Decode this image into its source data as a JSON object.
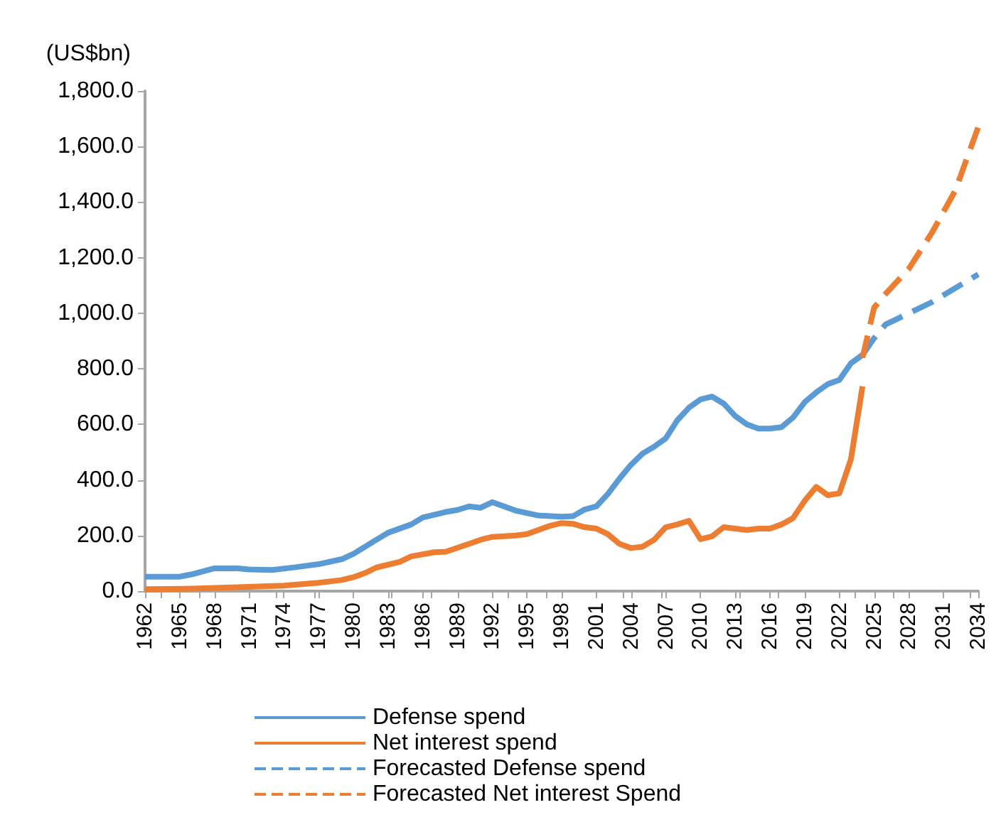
{
  "chart_data": {
    "type": "line",
    "ylabel": "(US$bn)",
    "xlim": [
      1962,
      2034
    ],
    "xticks": [
      1962,
      1965,
      1968,
      1971,
      1974,
      1977,
      1980,
      1983,
      1986,
      1989,
      1992,
      1995,
      1998,
      2001,
      2004,
      2007,
      2010,
      2013,
      2016,
      2019,
      2022,
      2025,
      2028,
      2031,
      2034
    ],
    "ylim": [
      0,
      1800
    ],
    "yticks": [
      {
        "value": 0,
        "label": "0.0"
      },
      {
        "value": 200,
        "label": "200.0"
      },
      {
        "value": 400,
        "label": "400.0"
      },
      {
        "value": 600,
        "label": "600.0"
      },
      {
        "value": 800,
        "label": "800.0"
      },
      {
        "value": 1000,
        "label": "1,000.0"
      },
      {
        "value": 1200,
        "label": "1,200.0"
      },
      {
        "value": 1400,
        "label": "1,400.0"
      },
      {
        "value": 1600,
        "label": "1,600.0"
      },
      {
        "value": 1800,
        "label": "1,800.0"
      }
    ],
    "grid": false,
    "legend": "bottom",
    "marker": "none",
    "series": [
      {
        "name": "Defense spend",
        "color": "#5b9bd5",
        "line_style": "solid",
        "x": [
          1962,
          1965,
          1966,
          1968,
          1970,
          1971,
          1973,
          1975,
          1977,
          1979,
          1980,
          1982,
          1983,
          1985,
          1986,
          1988,
          1989,
          1990,
          1991,
          1992,
          1994,
          1996,
          1998,
          1999,
          2000,
          2001,
          2002,
          2003,
          2004,
          2005,
          2006,
          2007,
          2008,
          2009,
          2010,
          2011,
          2012,
          2013,
          2014,
          2015,
          2016,
          2017,
          2018,
          2019,
          2020,
          2021,
          2022,
          2023,
          2024
        ],
        "values": [
          52,
          52,
          60,
          82,
          82,
          78,
          76,
          86,
          97,
          115,
          134,
          185,
          210,
          240,
          265,
          285,
          292,
          305,
          300,
          320,
          290,
          272,
          268,
          270,
          294,
          305,
          350,
          405,
          455,
          495,
          520,
          550,
          615,
          660,
          690,
          700,
          675,
          630,
          600,
          585,
          585,
          590,
          625,
          680,
          715,
          745,
          760,
          820,
          850
        ]
      },
      {
        "name": "Net interest spend",
        "color": "#ed7d31",
        "line_style": "solid",
        "x": [
          1962,
          1966,
          1970,
          1974,
          1977,
          1979,
          1980,
          1981,
          1982,
          1984,
          1985,
          1987,
          1988,
          1990,
          1991,
          1992,
          1994,
          1995,
          1997,
          1998,
          1999,
          2000,
          2001,
          2002,
          2003,
          2004,
          2005,
          2006,
          2007,
          2008,
          2009,
          2010,
          2011,
          2012,
          2014,
          2015,
          2016,
          2017,
          2018,
          2019,
          2020,
          2021,
          2022,
          2023,
          2024
        ],
        "values": [
          7,
          9,
          14,
          20,
          30,
          40,
          50,
          65,
          85,
          105,
          125,
          140,
          142,
          170,
          185,
          195,
          200,
          205,
          235,
          245,
          242,
          230,
          225,
          205,
          170,
          155,
          160,
          185,
          230,
          240,
          253,
          187,
          197,
          230,
          220,
          225,
          225,
          240,
          263,
          325,
          375,
          345,
          352,
          475,
          737
        ]
      },
      {
        "name": "Forecasted Defense spend",
        "color": "#5b9bd5",
        "line_style": "dashed",
        "x": [
          2024,
          2025,
          2026,
          2028,
          2030,
          2032,
          2034
        ],
        "values": [
          850,
          910,
          960,
          1000,
          1040,
          1090,
          1140
        ]
      },
      {
        "name": "Forecasted Net interest Spend",
        "color": "#ed7d31",
        "line_style": "dashed",
        "x": [
          2024,
          2025,
          2026,
          2028,
          2030,
          2032,
          2034
        ],
        "values": [
          840,
          1020,
          1070,
          1160,
          1290,
          1440,
          1670
        ]
      }
    ]
  }
}
